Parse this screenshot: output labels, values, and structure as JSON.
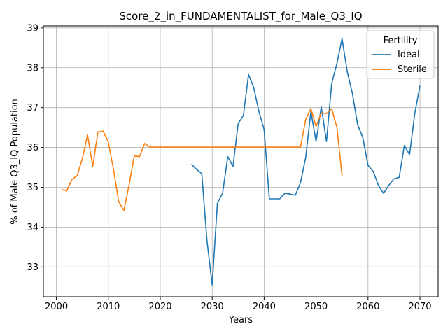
{
  "chart_data": {
    "type": "line",
    "title": "Score_2_in_FUNDAMENTALIST_for_Male_Q3_IQ",
    "xlabel": "Years",
    "ylabel": "% of Male Q3_IQ Population",
    "xlim": [
      1997.5,
      2073.5
    ],
    "ylim": [
      32.25,
      39.05
    ],
    "xticks": [
      2000,
      2010,
      2020,
      2030,
      2040,
      2050,
      2060,
      2070
    ],
    "yticks": [
      33,
      34,
      35,
      36,
      37,
      38,
      39
    ],
    "grid": true,
    "legend": {
      "title": "Fertility",
      "position": "top-right"
    },
    "series": [
      {
        "name": "Ideal",
        "color": "#1f77b4",
        "x": [
          2026,
          2027,
          2028,
          2029,
          2030,
          2031,
          2032,
          2033,
          2034,
          2035,
          2036,
          2037,
          2038,
          2039,
          2040,
          2041,
          2042,
          2043,
          2044,
          2045,
          2046,
          2047,
          2048,
          2049,
          2050,
          2051,
          2052,
          2053,
          2054,
          2055,
          2056,
          2057,
          2058,
          2059,
          2060,
          2061,
          2062,
          2063,
          2064,
          2065,
          2066,
          2067,
          2068,
          2069,
          2070
        ],
        "y": [
          35.58,
          35.45,
          35.34,
          33.65,
          32.55,
          34.6,
          34.85,
          35.77,
          35.52,
          36.6,
          36.8,
          37.83,
          37.5,
          36.9,
          36.45,
          34.71,
          34.71,
          34.71,
          34.85,
          34.83,
          34.8,
          35.12,
          35.75,
          36.9,
          36.15,
          37.02,
          36.15,
          37.6,
          38.1,
          38.73,
          37.9,
          37.35,
          36.57,
          36.25,
          35.55,
          35.4,
          35.05,
          34.85,
          35.05,
          35.21,
          35.25,
          36.05,
          35.82,
          36.85,
          37.55
        ]
      },
      {
        "name": "Sterile",
        "color": "#ff7f0e",
        "x": [
          2001,
          2002,
          2003,
          2004,
          2005,
          2006,
          2007,
          2008,
          2009,
          2010,
          2011,
          2012,
          2013,
          2014,
          2015,
          2016,
          2017,
          2018,
          2019,
          2020,
          2025,
          2030,
          2035,
          2040,
          2045,
          2046,
          2047,
          2048,
          2049,
          2050,
          2051,
          2052,
          2053,
          2054,
          2055
        ],
        "y": [
          34.95,
          34.91,
          35.2,
          35.29,
          35.72,
          36.32,
          35.52,
          36.39,
          36.41,
          36.14,
          35.45,
          34.64,
          34.42,
          35.06,
          35.79,
          35.77,
          36.1,
          36.01,
          36.01,
          36.01,
          36.01,
          36.01,
          36.01,
          36.01,
          36.01,
          36.01,
          36.01,
          36.7,
          36.98,
          36.52,
          36.87,
          36.85,
          36.97,
          36.51,
          35.29
        ]
      }
    ]
  }
}
